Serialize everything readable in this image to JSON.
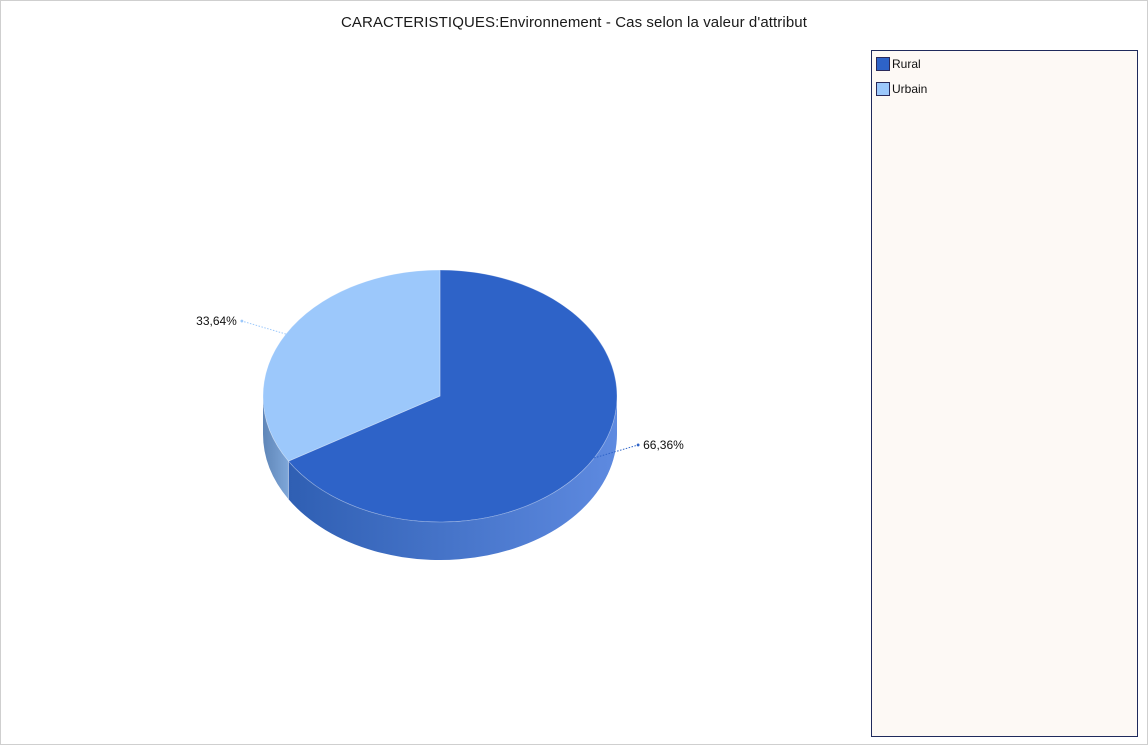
{
  "chart_data": {
    "type": "pie",
    "title": "CARACTERISTIQUES:Environnement - Cas selon la valeur d'attribut",
    "slices": [
      {
        "name": "Rural",
        "value": 66.36,
        "label": "66,36%",
        "color": "#2e63c8"
      },
      {
        "name": "Urbain",
        "value": 33.64,
        "label": "33,64%",
        "color": "#9cc8fb"
      }
    ],
    "legend_position": "right",
    "style": "3d"
  }
}
